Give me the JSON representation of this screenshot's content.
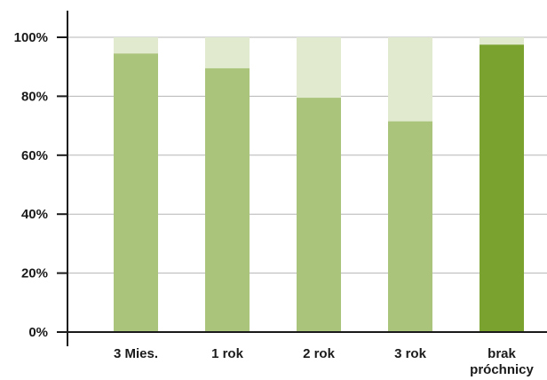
{
  "chart_data": {
    "type": "bar",
    "stacked": true,
    "categories": [
      "3 Mies.",
      "1 rok",
      "2 rok",
      "3 rok",
      "brak próchnicy"
    ],
    "category_label_lines": [
      [
        "3 Mies."
      ],
      [
        "1 rok"
      ],
      [
        "2 rok"
      ],
      [
        "3 rok"
      ],
      [
        "brak",
        "próchnicy"
      ]
    ],
    "values": [
      94.5,
      89.5,
      79.5,
      71.5,
      97.5
    ],
    "total": 100,
    "ylim": [
      0,
      100
    ],
    "y_ticks": [
      0,
      20,
      40,
      60,
      80,
      100
    ],
    "y_tick_labels": [
      "0%",
      "20%",
      "40%",
      "60%",
      "80%",
      "100%"
    ],
    "highlight_index": 4,
    "grid": true,
    "legend": "none",
    "title": "",
    "xlabel": "",
    "ylabel": "",
    "colors": {
      "bar": "#aac47c",
      "bar_remainder": "#e1eacf",
      "highlight_bar": "#79a22e",
      "highlight_remainder": "#e1eacf",
      "highlight_label": "#79a22e",
      "grid": "#b5b5b5",
      "axis": "#1a1a1a"
    }
  }
}
